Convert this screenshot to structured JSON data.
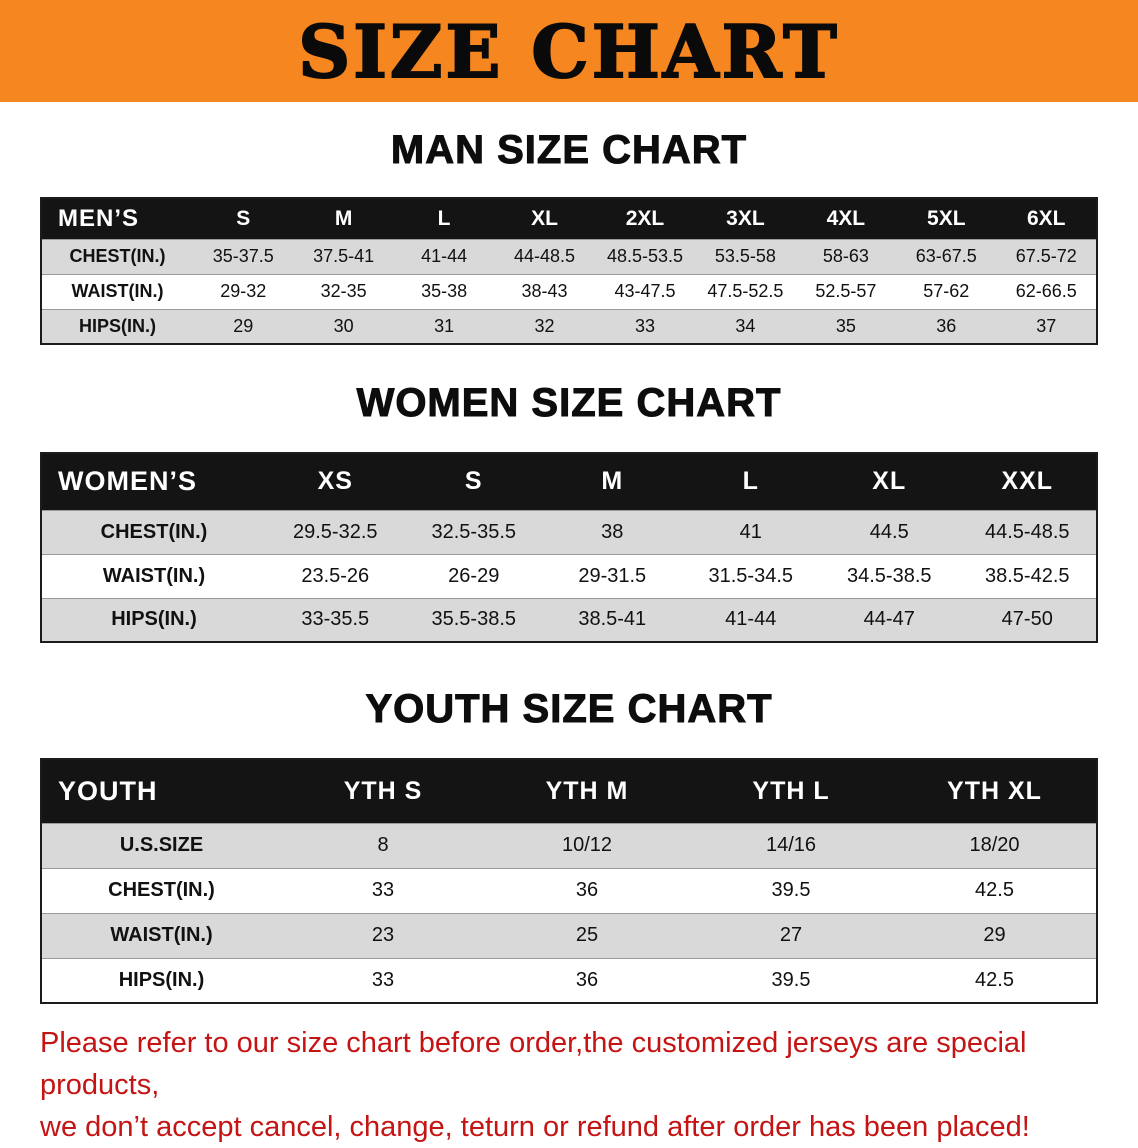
{
  "colors": {
    "banner-bg": "#f6861f",
    "header-bg": "#141414",
    "stripe-bg": "#d9d9d9",
    "disclaimer-red": "#c41414"
  },
  "banner": {
    "title": "SIZE CHART"
  },
  "sections": {
    "men": {
      "heading": "MAN SIZE CHART",
      "header": [
        "MEN’S",
        "S",
        "M",
        "L",
        "XL",
        "2XL",
        "3XL",
        "4XL",
        "5XL",
        "6XL"
      ],
      "rows": [
        {
          "label": "CHEST(IN.)",
          "values": [
            "35-37.5",
            "37.5-41",
            "41-44",
            "44-48.5",
            "48.5-53.5",
            "53.5-58",
            "58-63",
            "63-67.5",
            "67.5-72"
          ]
        },
        {
          "label": "WAIST(IN.)",
          "values": [
            "29-32",
            "32-35",
            "35-38",
            "38-43",
            "43-47.5",
            "47.5-52.5",
            "52.5-57",
            "57-62",
            "62-66.5"
          ]
        },
        {
          "label": "HIPS(IN.)",
          "values": [
            "29",
            "30",
            "31",
            "32",
            "33",
            "34",
            "35",
            "36",
            "37"
          ]
        }
      ]
    },
    "women": {
      "heading": "WOMEN SIZE CHART",
      "header": [
        "WOMEN’S",
        "XS",
        "S",
        "M",
        "L",
        "XL",
        "XXL"
      ],
      "rows": [
        {
          "label": "CHEST(IN.)",
          "values": [
            "29.5-32.5",
            "32.5-35.5",
            "38",
            "41",
            "44.5",
            "44.5-48.5"
          ]
        },
        {
          "label": "WAIST(IN.)",
          "values": [
            "23.5-26",
            "26-29",
            "29-31.5",
            "31.5-34.5",
            "34.5-38.5",
            "38.5-42.5"
          ]
        },
        {
          "label": "HIPS(IN.)",
          "values": [
            "33-35.5",
            "35.5-38.5",
            "38.5-41",
            "41-44",
            "44-47",
            "47-50"
          ]
        }
      ]
    },
    "youth": {
      "heading": "YOUTH SIZE CHART",
      "header": [
        "YOUTH",
        "YTH S",
        "YTH M",
        "YTH L",
        "YTH XL"
      ],
      "rows": [
        {
          "label": "U.S.SIZE",
          "values": [
            "8",
            "10/12",
            "14/16",
            "18/20"
          ]
        },
        {
          "label": "CHEST(IN.)",
          "values": [
            "33",
            "36",
            "39.5",
            "42.5"
          ]
        },
        {
          "label": "WAIST(IN.)",
          "values": [
            "23",
            "25",
            "27",
            "29"
          ]
        },
        {
          "label": "HIPS(IN.)",
          "values": [
            "33",
            "36",
            "39.5",
            "42.5"
          ]
        }
      ]
    }
  },
  "disclaimer": {
    "line1": "Please refer to our size chart before order,the customized jerseys are special products,",
    "line2": "we don’t accept cancel, change, teturn or refund after order has been placed!"
  }
}
